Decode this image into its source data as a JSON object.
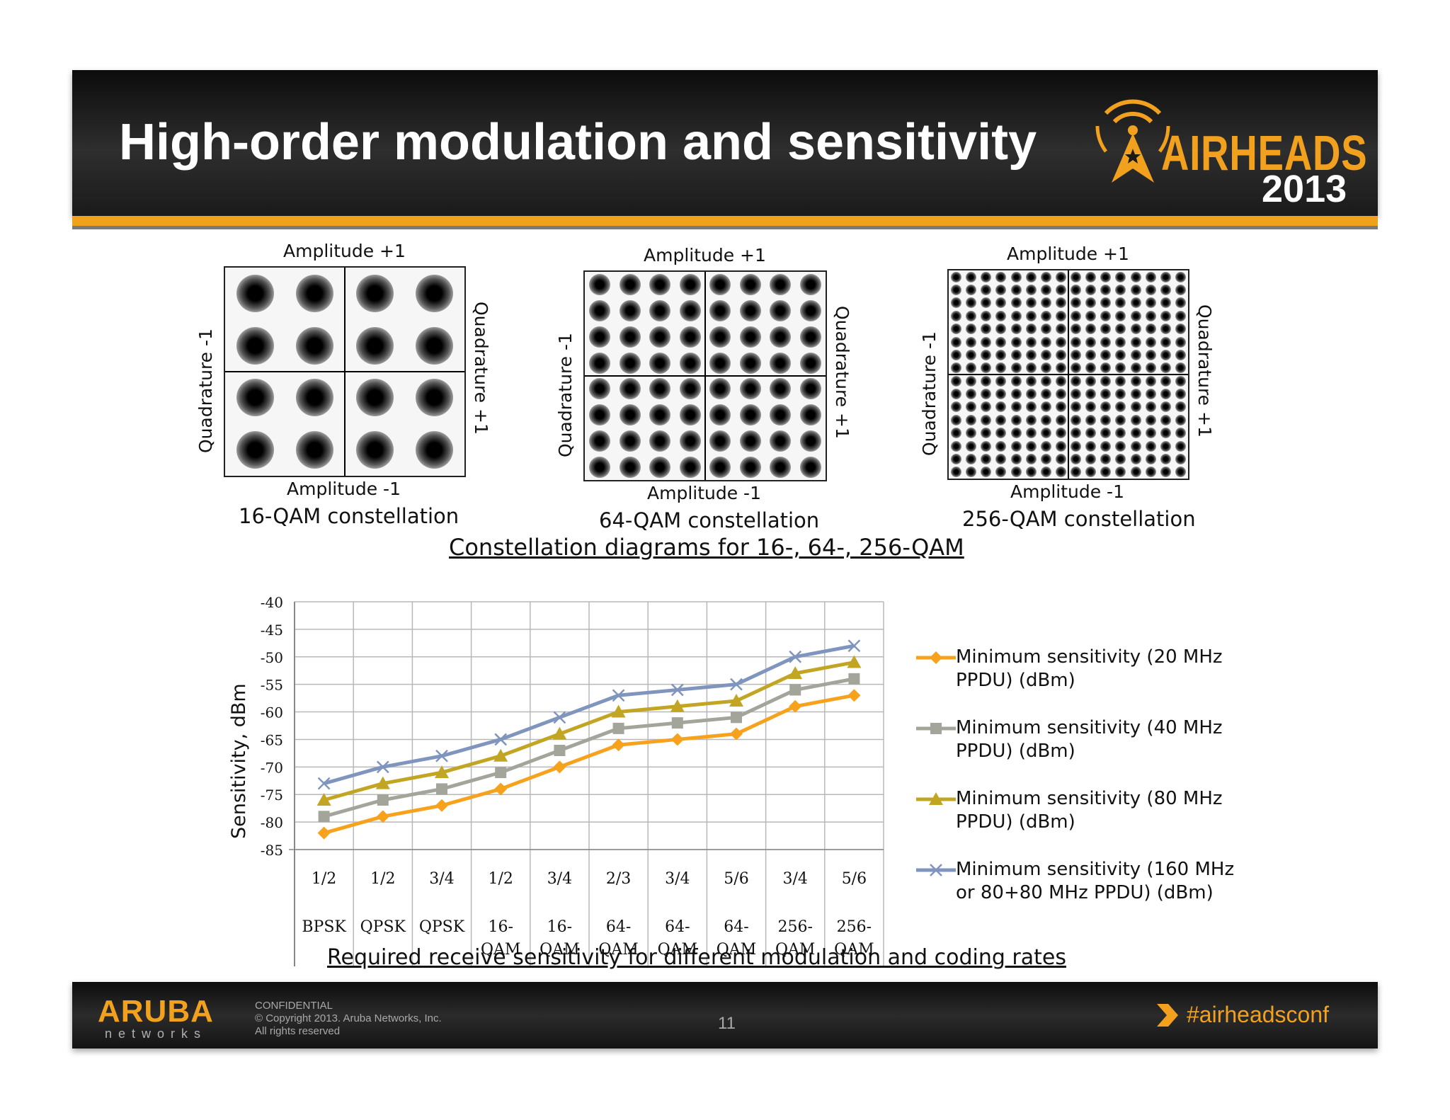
{
  "header": {
    "title": "High-order modulation and sensitivity",
    "logo_text": "AIRHEADS",
    "logo_year": "2013"
  },
  "constellations": [
    {
      "name": "16-QAM",
      "grid": 4,
      "caption": "16-QAM constellation",
      "top_label": "Amplitude  +1",
      "bottom_label": "Amplitude  -1",
      "left_label": "Quadrature  -1",
      "right_label": "Quadrature  +1"
    },
    {
      "name": "64-QAM",
      "grid": 8,
      "caption": "64-QAM constellation",
      "top_label": "Amplitude  +1",
      "bottom_label": "Amplitude  -1",
      "left_label": "Quadrature  -1",
      "right_label": "Quadrature  +1"
    },
    {
      "name": "256-QAM",
      "grid": 16,
      "caption": "256-QAM constellation",
      "top_label": "Amplitude  +1",
      "bottom_label": "Amplitude  -1",
      "left_label": "Quadrature  -1",
      "right_label": "Quadrature  +1"
    }
  ],
  "constellation_caption": "Constellation diagrams for 16-, 64-, 256-QAM",
  "chart_data": {
    "type": "line",
    "title": "",
    "ylabel": "Sensitivity, dBm",
    "xlabel": "",
    "ylim": [
      -85,
      -40
    ],
    "yticks": [
      -40,
      -45,
      -50,
      -55,
      -60,
      -65,
      -70,
      -75,
      -80,
      -85
    ],
    "categories": [
      {
        "rate": "1/2",
        "modulation": "BPSK"
      },
      {
        "rate": "1/2",
        "modulation": "QPSK"
      },
      {
        "rate": "3/4",
        "modulation": "QPSK"
      },
      {
        "rate": "1/2",
        "modulation": "16-QAM"
      },
      {
        "rate": "3/4",
        "modulation": "16-QAM"
      },
      {
        "rate": "2/3",
        "modulation": "64-QAM"
      },
      {
        "rate": "3/4",
        "modulation": "64-QAM"
      },
      {
        "rate": "5/6",
        "modulation": "64-QAM"
      },
      {
        "rate": "3/4",
        "modulation": "256-QAM"
      },
      {
        "rate": "5/6",
        "modulation": "256-QAM"
      }
    ],
    "series": [
      {
        "name": "Minimum sensitivity (20 MHz PPDU)  (dBm)",
        "color": "#f7a21c",
        "marker": "diamond",
        "values": [
          -82,
          -79,
          -77,
          -74,
          -70,
          -66,
          -65,
          -64,
          -59,
          -57
        ]
      },
      {
        "name": "Minimum sensitivity (40 MHz PPDU) (dBm)",
        "color": "#a3a59b",
        "marker": "square",
        "values": [
          -79,
          -76,
          -74,
          -71,
          -67,
          -63,
          -62,
          -61,
          -56,
          -54
        ]
      },
      {
        "name": "Minimum sensitivity (80 MHz PPDU) (dBm)",
        "color": "#c2a523",
        "marker": "triangle",
        "values": [
          -76,
          -73,
          -71,
          -68,
          -64,
          -60,
          -59,
          -58,
          -53,
          -51
        ]
      },
      {
        "name": "Minimum sensitivity (160 MHz or 80+80 MHz PPDU) (dBm)",
        "color": "#7f95bd",
        "marker": "x",
        "values": [
          -73,
          -70,
          -68,
          -65,
          -61,
          -57,
          -56,
          -55,
          -50,
          -48
        ]
      }
    ],
    "grid": true,
    "legend_position": "right"
  },
  "chart_caption": "Required receive sensitivity for different modulation and coding rates",
  "footer": {
    "brand": "ARUBA",
    "brand_sub": "networks",
    "confidential": "CONFIDENTIAL",
    "copyright": "© Copyright 2013. Aruba Networks, Inc.",
    "rights": "All rights reserved",
    "page_number": "11",
    "hashtag": "#airheadsconf"
  }
}
